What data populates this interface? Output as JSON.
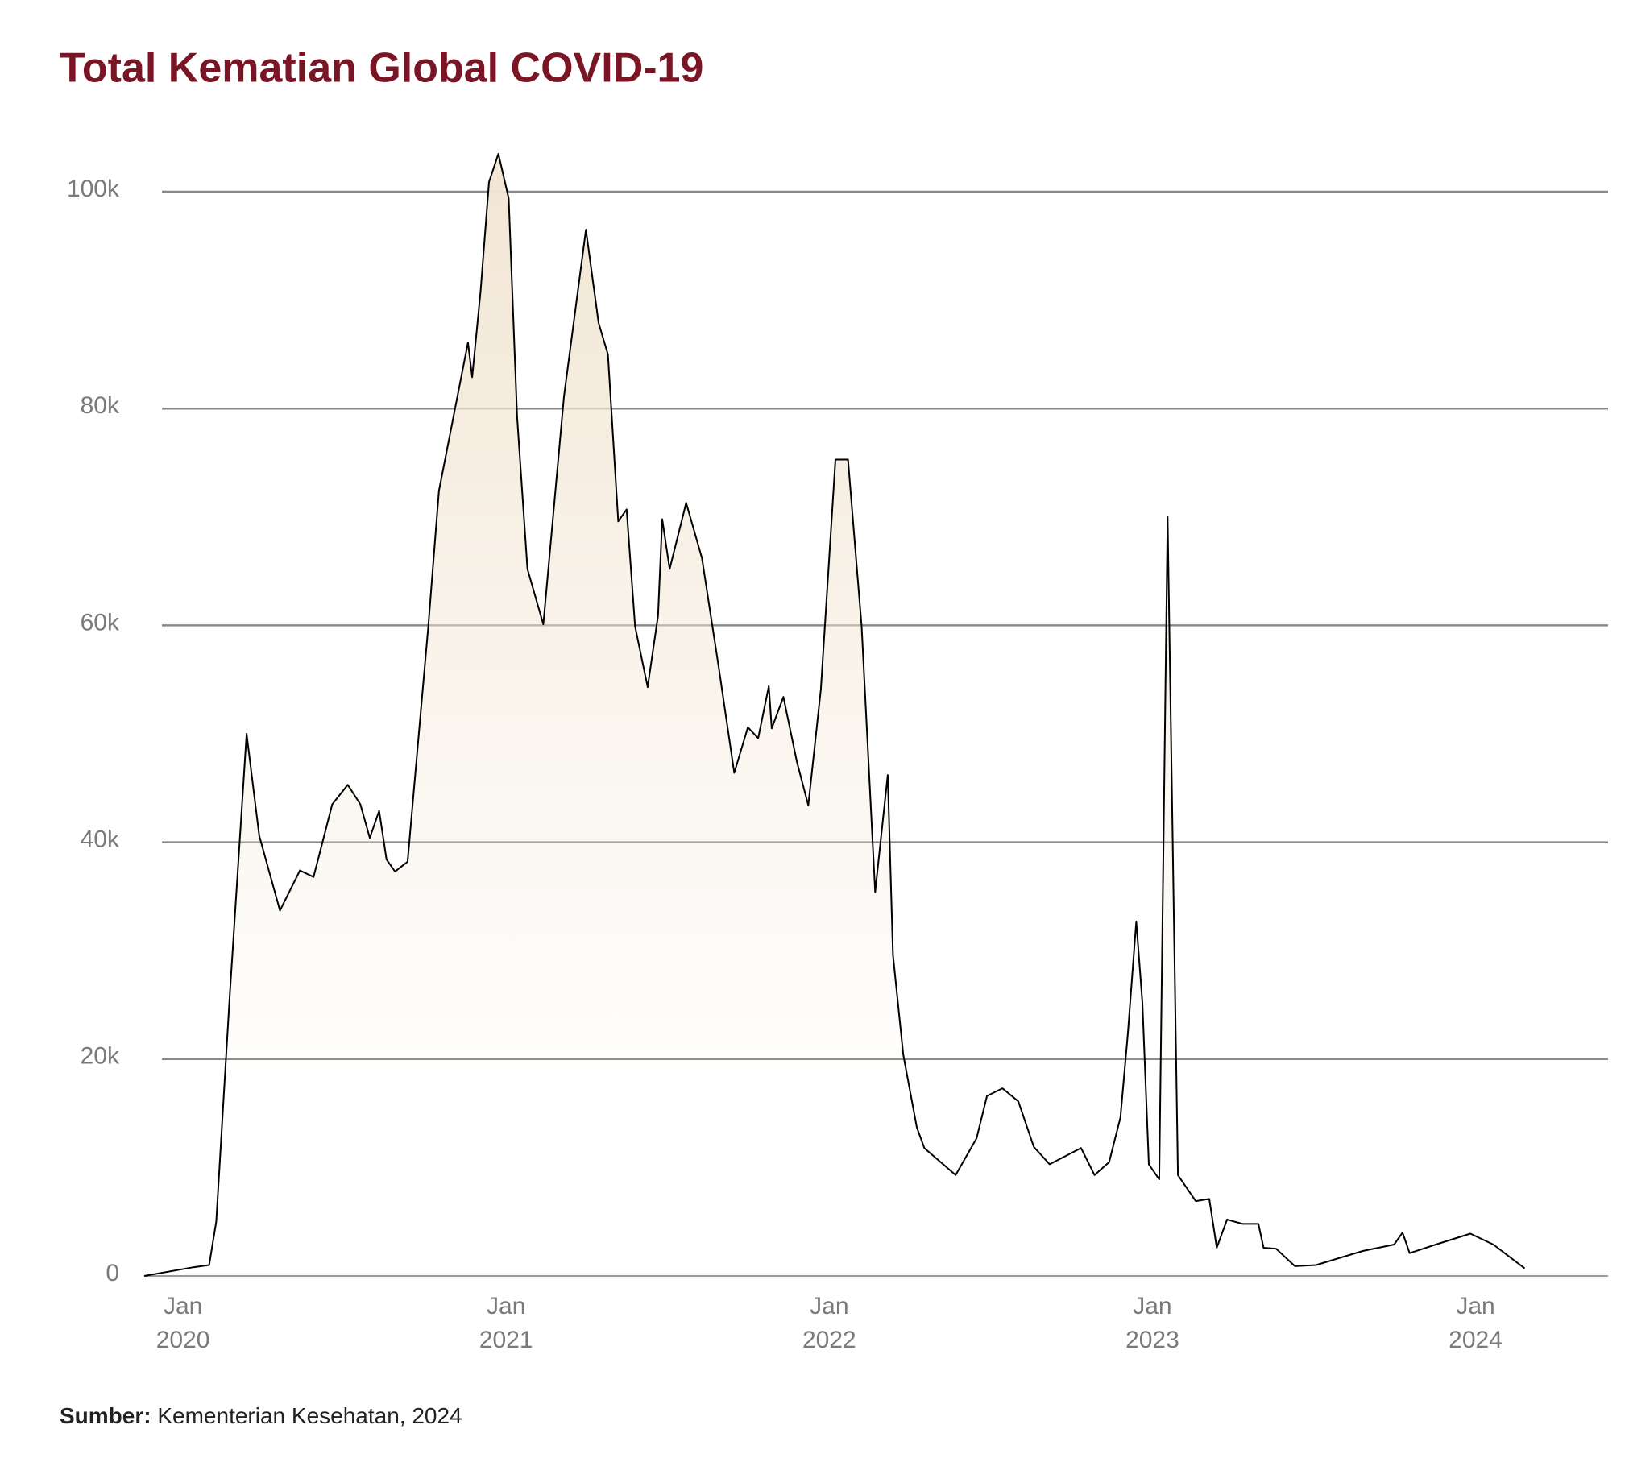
{
  "chart_data": {
    "type": "area",
    "title": "Total Kematian Global COVID-19",
    "source": {
      "label": "Sumber:",
      "text": "Kementerian Kesehatan, 2024"
    },
    "xlim": [
      2019.88,
      2024.41
    ],
    "xticks": [
      {
        "value": 2020,
        "label": "Jan 2020"
      },
      {
        "value": 2021,
        "label": "Jan 2021"
      },
      {
        "value": 2022,
        "label": "Jan 2022"
      },
      {
        "value": 2023,
        "label": "Jan 2023"
      },
      {
        "value": 2024,
        "label": "Jan 2024"
      }
    ],
    "ylim": [
      0,
      100000
    ],
    "yticks": [
      0,
      {
        "value": 20000,
        "label": "20k"
      },
      {
        "value": 40000,
        "label": "40k"
      },
      {
        "value": 60000,
        "label": "60k"
      },
      {
        "value": 80000,
        "label": "80k"
      },
      {
        "value": 100000,
        "label": "100k"
      }
    ],
    "grid": true,
    "series": [
      {
        "color": "#000000",
        "fill": "#f2e6d4",
        "x": [
          2019.88,
          2020.032,
          2020.081,
          2020.103,
          2020.145,
          2020.197,
          2020.236,
          2020.3,
          2020.362,
          2020.404,
          2020.462,
          2020.51,
          2020.549,
          2020.578,
          2020.607,
          2020.63,
          2020.656,
          2020.695,
          2020.759,
          2020.792,
          2020.882,
          2020.895,
          2020.921,
          2020.947,
          2020.976,
          2021.008,
          2021.034,
          2021.066,
          2021.115,
          2021.179,
          2021.247,
          2021.286,
          2021.315,
          2021.347,
          2021.373,
          2021.399,
          2021.438,
          2021.47,
          2021.483,
          2021.506,
          2021.557,
          2021.606,
          2021.658,
          2021.706,
          2021.748,
          2021.78,
          2021.813,
          2021.822,
          2021.858,
          2021.9,
          2021.935,
          2021.974,
          2022.019,
          2022.058,
          2022.1,
          2022.142,
          2022.181,
          2022.197,
          2022.229,
          2022.271,
          2022.294,
          2022.391,
          2022.456,
          2022.488,
          2022.536,
          2022.585,
          2022.633,
          2022.682,
          2022.779,
          2022.821,
          2022.866,
          2022.901,
          2022.924,
          2022.95,
          2022.969,
          2022.989,
          2023.021,
          2023.047,
          2023.079,
          2023.134,
          2023.176,
          2023.199,
          2023.231,
          2023.279,
          2023.328,
          2023.344,
          2023.383,
          2023.441,
          2023.506,
          2023.651,
          2023.748,
          2023.774,
          2023.796,
          2023.877,
          2023.984,
          2024.055,
          2024.152
        ],
        "values": [
          0,
          800,
          1000,
          5000,
          26000,
          50000,
          40600,
          33700,
          37400,
          36800,
          43500,
          45300,
          43500,
          40400,
          42900,
          38400,
          37300,
          38200,
          59900,
          72400,
          86100,
          82900,
          90800,
          100900,
          103500,
          99400,
          79200,
          65200,
          60100,
          81100,
          96500,
          87900,
          85000,
          69600,
          70700,
          59900,
          54300,
          60900,
          69800,
          65200,
          71300,
          66200,
          56100,
          46400,
          50600,
          49600,
          54400,
          50500,
          53400,
          47400,
          43400,
          54100,
          75300,
          75300,
          59900,
          35400,
          46200,
          29600,
          20400,
          13700,
          11800,
          9300,
          12700,
          16600,
          17300,
          16100,
          11900,
          10300,
          11800,
          9300,
          10500,
          14600,
          22400,
          32700,
          25200,
          10300,
          8900,
          70000,
          9300,
          6900,
          7100,
          2600,
          5200,
          4800,
          4800,
          2600,
          2500,
          900,
          1000,
          2300,
          2900,
          4000,
          2100,
          2900,
          3900,
          2900,
          700
        ]
      }
    ]
  }
}
